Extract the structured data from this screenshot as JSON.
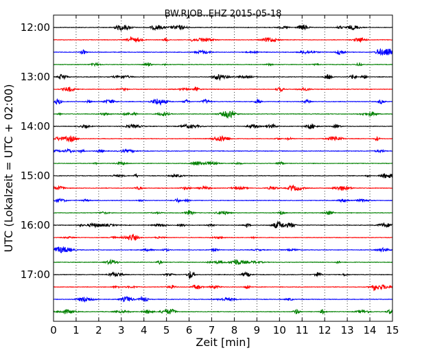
{
  "chart_data": {
    "type": "line",
    "subtype": "seismogram-dayplot",
    "title": "BW.RJOB..EHZ 2015-05-18",
    "xlabel": "Zeit  [min]",
    "ylabel": "UTC (Lokalzeit = UTC + 02:00)",
    "x_range": [
      0,
      15
    ],
    "x_ticks": [
      0,
      1,
      2,
      3,
      4,
      5,
      6,
      7,
      8,
      9,
      10,
      11,
      12,
      13,
      14,
      15
    ],
    "x_tick_labels": [
      "0",
      "1",
      "2",
      "3",
      "4",
      "5",
      "6",
      "7",
      "8",
      "9",
      "10",
      "11",
      "12",
      "13",
      "14",
      "15"
    ],
    "y_ticks": [
      "12:00",
      "13:00",
      "14:00",
      "15:00",
      "16:00",
      "17:00"
    ],
    "rows_per_hour": 4,
    "minutes_per_row": 15,
    "row_start_times": [
      "12:00",
      "12:15",
      "12:30",
      "12:45",
      "13:00",
      "13:15",
      "13:30",
      "13:45",
      "14:00",
      "14:15",
      "14:30",
      "14:45",
      "15:00",
      "15:15",
      "15:30",
      "15:45",
      "16:00",
      "16:15",
      "16:30",
      "16:45",
      "17:00",
      "17:15",
      "17:30",
      "17:45"
    ],
    "series_colors": [
      "#000000",
      "#ff0000",
      "#0000ff",
      "#008000"
    ],
    "grid": {
      "x": true,
      "y": false,
      "style": "dotted"
    }
  }
}
